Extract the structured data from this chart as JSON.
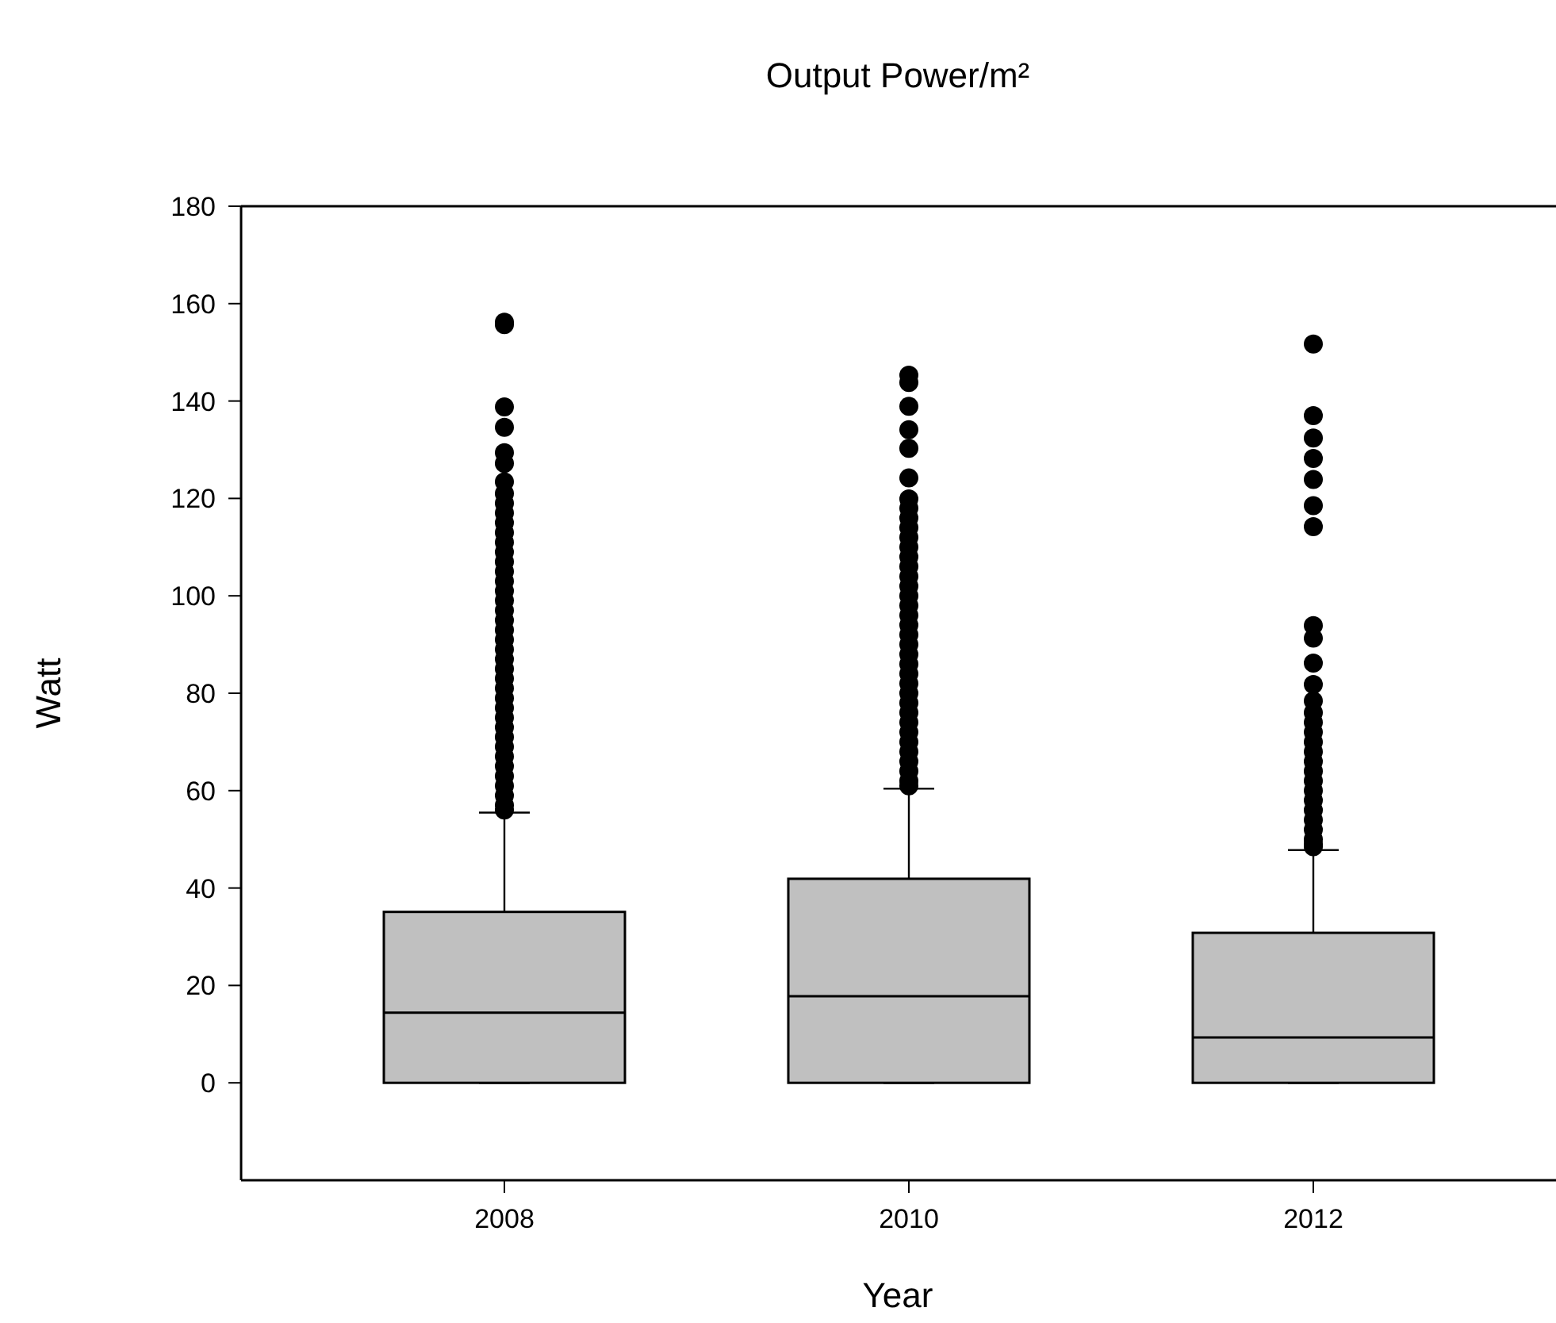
{
  "chart_data": {
    "type": "box",
    "title": "Output Power/m²",
    "xlabel": "Year",
    "ylabel": "Watt",
    "categories": [
      "2008",
      "2010",
      "2012"
    ],
    "ylim": [
      -20,
      180
    ],
    "yticks": [
      0,
      20,
      40,
      60,
      80,
      100,
      120,
      140,
      160,
      180
    ],
    "color": "#c0c0c0",
    "marker": "circle",
    "grid": false,
    "boxes": [
      {
        "low": 0,
        "q1": 0,
        "median": 14.4,
        "q3": 35.1,
        "high": 55.5,
        "outliers": [
          156.2,
          155.7,
          138.8,
          134.6,
          129.4,
          127.2,
          123.4,
          121,
          119,
          117,
          115,
          113,
          111,
          109,
          107,
          105,
          103,
          101,
          99,
          97,
          95,
          93,
          91,
          89,
          87,
          85,
          83,
          81,
          79,
          77,
          75,
          73,
          71,
          69,
          67,
          65,
          63,
          61,
          59,
          57,
          56
        ]
      },
      {
        "low": 0,
        "q1": 0,
        "median": 17.8,
        "q3": 41.9,
        "high": 60.4,
        "outliers": [
          145.3,
          143.8,
          138.9,
          134.1,
          130.3,
          124.2,
          119.9,
          118,
          116,
          114,
          112,
          110,
          108,
          106,
          104,
          102,
          100,
          98,
          96,
          94,
          92,
          90,
          88,
          86,
          84,
          82,
          80,
          78,
          76,
          74,
          72,
          70,
          68,
          66,
          64,
          62,
          61
        ]
      },
      {
        "low": 0,
        "q1": 0,
        "median": 9.3,
        "q3": 30.8,
        "high": 47.8,
        "outliers": [
          151.7,
          137,
          132.4,
          128.2,
          123.9,
          118.5,
          114.2,
          93.9,
          91.3,
          86.2,
          81.8,
          78.4,
          76,
          74,
          72,
          70,
          68,
          66,
          64,
          62,
          60,
          58,
          56,
          54,
          52,
          50,
          49,
          48.5
        ]
      }
    ]
  }
}
